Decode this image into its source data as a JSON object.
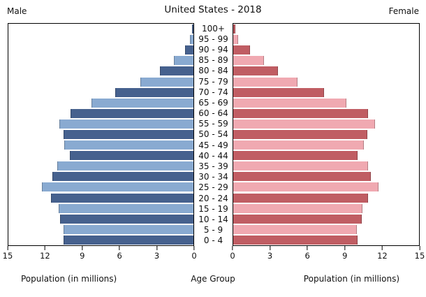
{
  "header": {
    "title": "United States - 2018",
    "left_label": "Male",
    "right_label": "Female"
  },
  "footer": {
    "left_axis_label": "Population (in millions)",
    "center_axis_label": "Age Group",
    "right_axis_label": "Population (in millions)"
  },
  "colors": {
    "male_dark": "#46618e",
    "male_light": "#89aad1",
    "female_dark": "#c05d63",
    "female_light": "#f0a9b1",
    "bar_edge": "rgba(0,0,0,0.25)",
    "axis": "#000000"
  },
  "chart_data": {
    "type": "bar",
    "subtype": "population-pyramid",
    "title": "United States - 2018",
    "unit": "millions",
    "xlim": [
      0,
      15
    ],
    "left_ticks": [
      "15",
      "12",
      "9",
      "6",
      "3",
      "0"
    ],
    "right_ticks": [
      "0",
      "3",
      "6",
      "9",
      "12",
      "15"
    ],
    "categories_top_to_bottom": [
      "100+",
      "95 - 99",
      "90 - 94",
      "85 - 89",
      "80 - 84",
      "75 - 79",
      "70 - 74",
      "65 - 69",
      "60 - 64",
      "55 - 59",
      "50 - 54",
      "45 - 49",
      "40 - 44",
      "35 - 39",
      "30 - 34",
      "25 - 29",
      "20 - 24",
      "15 - 19",
      "10 - 14",
      "5 - 9",
      "0 - 4"
    ],
    "series": [
      {
        "name": "Male",
        "values": [
          0.05,
          0.25,
          0.65,
          1.55,
          2.65,
          4.25,
          6.3,
          8.2,
          9.9,
          10.8,
          10.5,
          10.4,
          9.95,
          11.0,
          11.4,
          12.25,
          11.5,
          10.85,
          10.75,
          10.5,
          10.45
        ]
      },
      {
        "name": "Female",
        "values": [
          0.1,
          0.35,
          1.3,
          2.45,
          3.55,
          5.15,
          7.3,
          9.1,
          10.8,
          11.4,
          10.75,
          10.5,
          10.0,
          10.85,
          11.05,
          11.65,
          10.85,
          10.4,
          10.3,
          9.9,
          10.0
        ]
      }
    ],
    "legend_position": "none",
    "grid": false
  }
}
